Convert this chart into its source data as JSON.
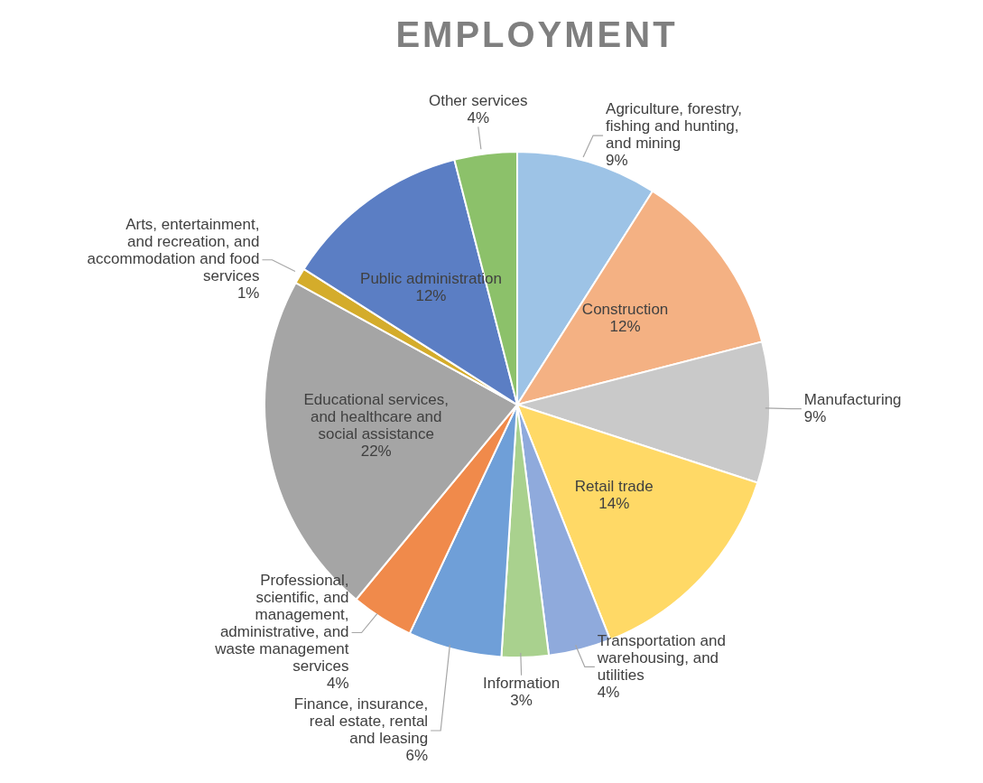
{
  "chart_data": {
    "type": "pie",
    "title": "EMPLOYMENT",
    "categories": [
      "Agriculture, forestry, fishing and hunting, and mining",
      "Construction",
      "Manufacturing",
      "Retail trade",
      "Transportation and warehousing, and utilities",
      "Information",
      "Finance, insurance, real estate, rental and leasing",
      "Professional, scientific, and management, administrative, and waste management services",
      "Educational services, and healthcare and social assistance",
      "Arts, entertainment, and recreation, and accommodation and food services",
      "Public administration",
      "Other services"
    ],
    "values": [
      9,
      12,
      9,
      14,
      4,
      3,
      6,
      4,
      22,
      1,
      12,
      4
    ],
    "value_labels": [
      "9%",
      "12%",
      "9%",
      "14%",
      "4%",
      "3%",
      "6%",
      "4%",
      "22%",
      "1%",
      "12%",
      "4%"
    ],
    "colors": [
      "#9dc3e6",
      "#f4b183",
      "#c9c9c9",
      "#ffd966",
      "#8faadc",
      "#a9d18e",
      "#6f9fd8",
      "#f08a4b",
      "#a5a5a5",
      "#d4ac2b",
      "#5b7ec4",
      "#8cc16a"
    ]
  }
}
